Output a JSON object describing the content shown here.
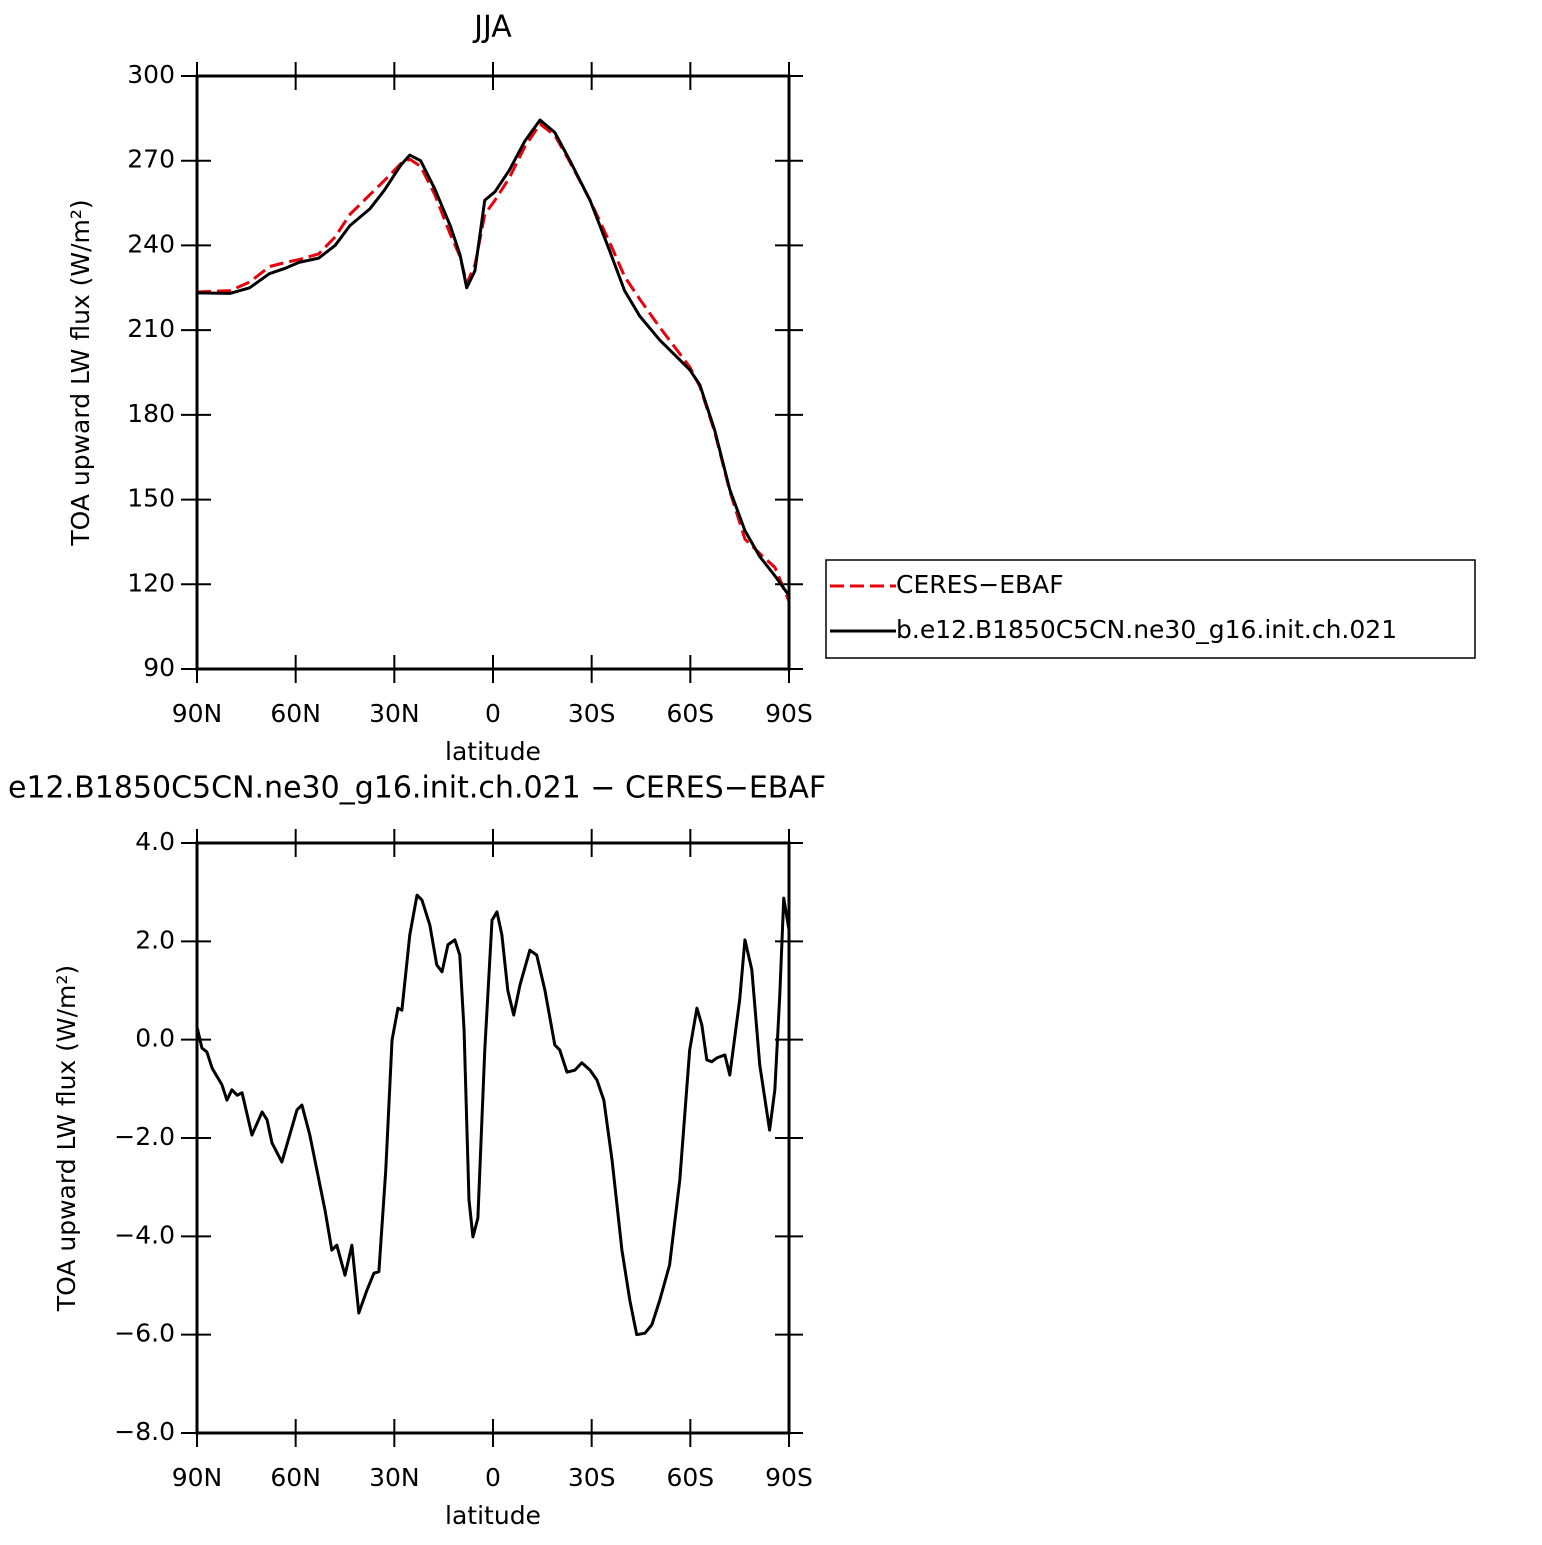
{
  "chart_data": [
    {
      "type": "line",
      "title": "JJA",
      "xlabel": "latitude",
      "ylabel": "TOA upward LW flux (W/m²)",
      "x": [
        90,
        80,
        74,
        68,
        63,
        59,
        53,
        48,
        43.5,
        37.4,
        33,
        28,
        25.3,
        22,
        17.7,
        13,
        10,
        8,
        5.5,
        2.5,
        -0.6,
        -5,
        -9.7,
        -14.3,
        -18.8,
        -23.4,
        -29.5,
        -35.5,
        -40,
        -44.6,
        -50.7,
        -59.8,
        -62.9,
        -67.4,
        -72,
        -76.6,
        -81,
        -85.7,
        -90
      ],
      "series": [
        {
          "name": "CERES−EBAF",
          "color": "#e8000b",
          "dash": true,
          "values": [
            223.5,
            224,
            227,
            232.5,
            234,
            235,
            237,
            243,
            251,
            258,
            263,
            269,
            270.5,
            268,
            258,
            244,
            236,
            226.5,
            233,
            251,
            256,
            264,
            275,
            283,
            279,
            269.5,
            256,
            241,
            229,
            221,
            211,
            197,
            190,
            174,
            153,
            136,
            131,
            126,
            114
          ]
        },
        {
          "name": "b.e12.B1850C5CN.ne30_g16.init.ch.021",
          "color": "#000000",
          "dash": false,
          "values": [
            223.2,
            223,
            225,
            230,
            232,
            234,
            235.5,
            240,
            247,
            253,
            259.6,
            268.5,
            272,
            270,
            260,
            247,
            236.6,
            225,
            231,
            256,
            259,
            266.7,
            277,
            284.4,
            280,
            270,
            256,
            238,
            224,
            215,
            206.5,
            196,
            190.6,
            174.6,
            153.5,
            139,
            130,
            123,
            116
          ]
        }
      ],
      "xlim": [
        90,
        -90
      ],
      "xticks": [
        {
          "value": 90,
          "label": "90N"
        },
        {
          "value": 60,
          "label": "60N"
        },
        {
          "value": 30,
          "label": "30N"
        },
        0,
        {
          "value": -30,
          "label": "30S"
        },
        {
          "value": -60,
          "label": "60S"
        },
        {
          "value": -90,
          "label": "90S"
        }
      ],
      "ylim": [
        90,
        300
      ],
      "yticks": [
        90,
        120,
        150,
        180,
        210,
        240,
        270,
        300
      ],
      "legend": "right"
    },
    {
      "type": "line",
      "title": "e12.B1850C5CN.ne30_g16.init.ch.021 − CERES−EBAF",
      "xlabel": "latitude",
      "ylabel": "TOA upward LW flux (W/m²)",
      "x": [
        90,
        88.5,
        87,
        85.4,
        82.4,
        80.9,
        79.4,
        77.8,
        76.3,
        73.3,
        70.2,
        68.7,
        67.2,
        64.2,
        59.6,
        58.1,
        55.7,
        51.1,
        49,
        47.5,
        45,
        42.9,
        40.8,
        38.3,
        36.2,
        34.7,
        32.6,
        30.7,
        28.9,
        27.7,
        25.3,
        23.1,
        21.6,
        19.2,
        17.1,
        15.5,
        13.7,
        11.6,
        10.1,
        8.8,
        7.3,
        6.1,
        4.6,
        2.5,
        0.3,
        -1.2,
        -2.7,
        -4.5,
        -6.3,
        -8.2,
        -11.2,
        -13.3,
        -15.8,
        -18.8,
        -20.3,
        -22.5,
        -24.9,
        -27,
        -29.5,
        -31.6,
        -33.7,
        -36.2,
        -39.2,
        -41.6,
        -43.7,
        -46.2,
        -48.3,
        -50.7,
        -53.7,
        -56.8,
        -59.8,
        -62,
        -63.5,
        -65,
        -66.5,
        -68.1,
        -70.5,
        -72,
        -75,
        -76.6,
        -78.7,
        -81.1,
        -84.1,
        -85.7,
        -87.2,
        -88.4,
        -90
      ],
      "series": [
        {
          "name": "b.e12.B1850C5CN.ne30_g16.init.ch.021",
          "color": "#000000",
          "dash": false,
          "values": [
            0.26,
            -0.17,
            -0.25,
            -0.58,
            -0.92,
            -1.23,
            -1.02,
            -1.13,
            -1.08,
            -1.94,
            -1.47,
            -1.63,
            -2.1,
            -2.49,
            -1.43,
            -1.33,
            -1.94,
            -3.46,
            -4.28,
            -4.18,
            -4.79,
            -4.18,
            -5.56,
            -5.09,
            -4.75,
            -4.72,
            -2.65,
            -0.01,
            0.64,
            0.6,
            2.13,
            2.94,
            2.84,
            2.33,
            1.52,
            1.38,
            1.93,
            2.03,
            1.72,
            0.2,
            -3.26,
            -4.01,
            -3.63,
            -0.21,
            2.43,
            2.6,
            2.13,
            1.0,
            0.5,
            1.11,
            1.82,
            1.72,
            1.0,
            -0.11,
            -0.21,
            -0.66,
            -0.62,
            -0.47,
            -0.62,
            -0.82,
            -1.23,
            -2.45,
            -4.28,
            -5.3,
            -6.0,
            -5.97,
            -5.8,
            -5.3,
            -4.58,
            -2.85,
            -0.21,
            0.64,
            0.3,
            -0.41,
            -0.45,
            -0.37,
            -0.31,
            -0.72,
            0.81,
            2.03,
            1.42,
            -0.51,
            -1.84,
            -1.02,
            0.91,
            2.88,
            2.23
          ]
        }
      ],
      "xlim": [
        90,
        -90
      ],
      "xticks": [
        {
          "value": 90,
          "label": "90N"
        },
        {
          "value": 60,
          "label": "60N"
        },
        {
          "value": 30,
          "label": "30N"
        },
        0,
        {
          "value": -30,
          "label": "30S"
        },
        {
          "value": -60,
          "label": "60S"
        },
        {
          "value": -90,
          "label": "90S"
        }
      ],
      "ylim": [
        -8,
        4
      ],
      "yticks": [
        {
          "value": -8,
          "label": "−8.0"
        },
        {
          "value": -6,
          "label": "−6.0"
        },
        {
          "value": -4,
          "label": "−4.0"
        },
        {
          "value": -2,
          "label": "−2.0"
        },
        {
          "value": 0,
          "label": "0.0"
        },
        {
          "value": 2,
          "label": "2.0"
        },
        {
          "value": 4,
          "label": "4.0"
        }
      ]
    }
  ]
}
